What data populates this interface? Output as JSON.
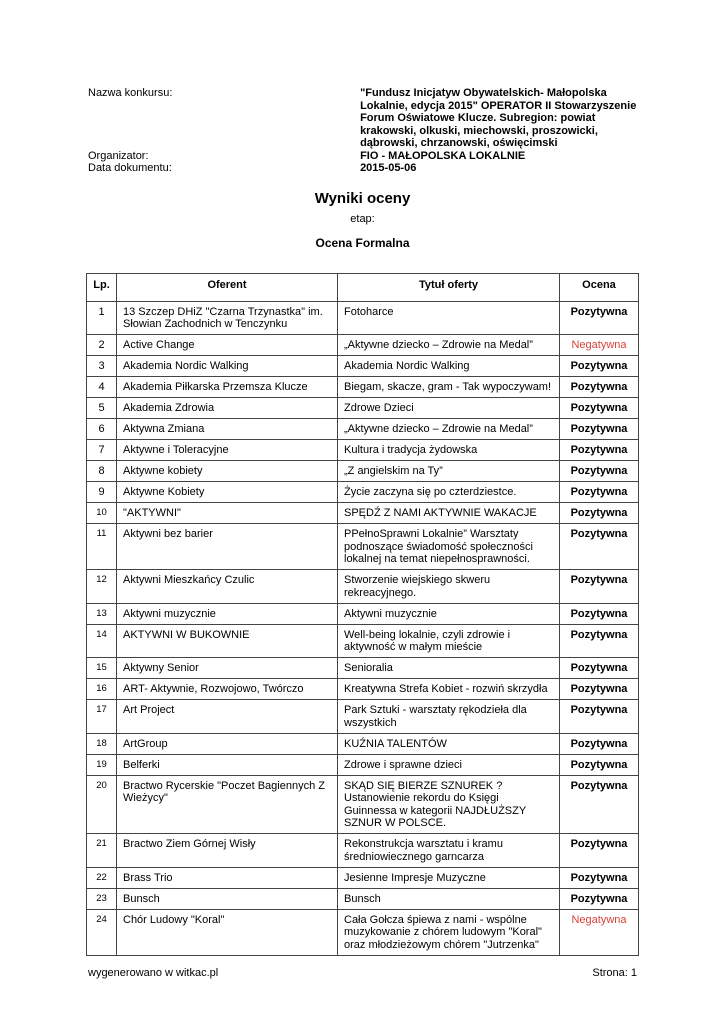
{
  "meta": {
    "competition_label": "Nazwa konkursu:",
    "competition_value": "\"Fundusz Inicjatyw Obywatelskich- Małopolska Lokalnie, edycja 2015\" OPERATOR II Stowarzyszenie Forum Oświatowe Klucze. Subregion: powiat krakowski, olkuski, miechowski, proszowicki, dąbrowski, chrzanowski, oświęcimski",
    "organizer_label": "Organizator:",
    "organizer_value": "FIO - MAŁOPOLSKA LOKALNIE",
    "date_label": "Data dokumentu:",
    "date_value": "2015-05-06"
  },
  "title": "Wyniki oceny",
  "stage_label": "etap:",
  "stage": "Ocena Formalna",
  "table": {
    "headers": [
      "Lp.",
      "Oferent",
      "Tytuł oferty",
      "Ocena"
    ],
    "rows": [
      [
        "1",
        "13 Szczep DHiZ \"Czarna Trzynastka\" im. Słowian Zachodnich w Tenczynku",
        "Fotoharce",
        "Pozytywna"
      ],
      [
        "2",
        "Active Change",
        "„Aktywne dziecko – Zdrowie na Medal”",
        "Negatywna"
      ],
      [
        "3",
        "Akademia Nordic Walking",
        "Akademia Nordic Walking",
        "Pozytywna"
      ],
      [
        "4",
        "Akademia Piłkarska Przemsza Klucze",
        "Biegam, skacze, gram - Tak wypoczywam!",
        "Pozytywna"
      ],
      [
        "5",
        "Akademia Zdrowia",
        "Zdrowe Dzieci",
        "Pozytywna"
      ],
      [
        "6",
        "Aktywna Zmiana",
        "„Aktywne dziecko – Zdrowie na Medal”",
        "Pozytywna"
      ],
      [
        "7",
        "Aktywne i Toleracyjne",
        "Kultura i tradycja żydowska",
        "Pozytywna"
      ],
      [
        "8",
        "Aktywne kobiety",
        "„Z angielskim na Ty”",
        "Pozytywna"
      ],
      [
        "9",
        "Aktywne Kobiety",
        "Życie zaczyna się po czterdziestce.",
        "Pozytywna"
      ],
      [
        "10",
        "\"AKTYWNI\"",
        "SPĘDŹ Z NAMI AKTYWNIE WAKACJE",
        "Pozytywna"
      ],
      [
        "11",
        "Aktywni bez barier",
        "PPełnoSprawni Lokalnie” Warsztaty podnoszące świadomość społeczności lokalnej na temat niepełnosprawności.",
        "Pozytywna"
      ],
      [
        "12",
        "Aktywni Mieszkańcy Czulic",
        "Stworzenie wiejskiego skweru rekreacyjnego.",
        "Pozytywna"
      ],
      [
        "13",
        "Aktywni muzycznie",
        "Aktywni muzycznie",
        "Pozytywna"
      ],
      [
        "14",
        "AKTYWNI W BUKOWNIE",
        "Well-being lokalnie, czyli zdrowie i aktywność w małym mieście",
        "Pozytywna"
      ],
      [
        "15",
        "Aktywny Senior",
        "Senioralia",
        "Pozytywna"
      ],
      [
        "16",
        "ART- Aktywnie, Rozwojowo, Twórczo",
        "Kreatywna Strefa Kobiet - rozwiń skrzydła",
        "Pozytywna"
      ],
      [
        "17",
        "Art Project",
        "Park Sztuki - warsztaty rękodzieła dla wszystkich",
        "Pozytywna"
      ],
      [
        "18",
        "ArtGroup",
        "KUŹNIA TALENTÓW",
        "Pozytywna"
      ],
      [
        "19",
        "Belferki",
        "Zdrowe i sprawne dzieci",
        "Pozytywna"
      ],
      [
        "20",
        "Bractwo Rycerskie \"Poczet Bagiennych Z Wieżycy\"",
        "SKĄD SIĘ BIERZE SZNUREK ? Ustanowienie rekordu do Księgi Guinnessa w kategorii NAJDŁUŻSZY SZNUR W POLSCE.",
        "Pozytywna"
      ],
      [
        "21",
        "Bractwo Ziem Górnej Wisły",
        "Rekonstrukcja warsztatu i kramu średniowiecznego garncarza",
        "Pozytywna"
      ],
      [
        "22",
        "Brass Trio",
        "Jesienne Impresje Muzyczne",
        "Pozytywna"
      ],
      [
        "23",
        "Bunsch",
        "Bunsch",
        "Pozytywna"
      ],
      [
        "24",
        "Chór Ludowy \"Koral\"",
        "Cała Gołcza śpiewa z nami - wspólne muzykowanie z chórem ludowym \"Koral\" oraz młodzieżowym chórem \"Jutrzenka\"",
        "Negatywna"
      ]
    ]
  },
  "colors": {
    "negative": "#d9413a"
  },
  "footer": {
    "generated": "wygenerowano w witkac.pl",
    "page": "Strona: 1"
  }
}
